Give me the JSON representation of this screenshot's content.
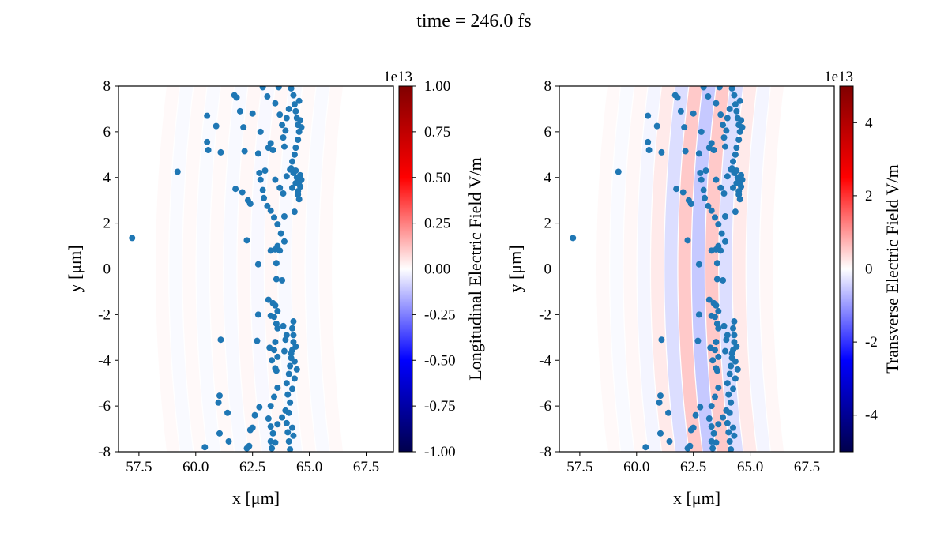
{
  "figure": {
    "title": "time = 246.0 fs"
  },
  "chart_data": [
    {
      "type": "scatter",
      "panel": "left",
      "background": "heatmap",
      "xlabel": "x [μm]",
      "ylabel": "y [μm]",
      "xlim": [
        56.6,
        68.7
      ],
      "ylim": [
        -8,
        8
      ],
      "xticks": [
        "57.5",
        "60.0",
        "62.5",
        "65.0",
        "67.5"
      ],
      "yticks": [
        "-8",
        "-6",
        "-4",
        "-2",
        "0",
        "2",
        "4",
        "6",
        "8"
      ],
      "colorbar": {
        "label": "Longitudinal Electric Field V/m",
        "offset": "1e13",
        "range": [
          -1.0,
          1.0
        ],
        "ticks": [
          "-1.00",
          "-0.75",
          "-0.50",
          "-0.25",
          "0.00",
          "0.25",
          "0.50",
          "0.75",
          "1.00"
        ],
        "colormap": "seismic"
      },
      "field_amplitude": 0.03,
      "marker_color": "#1f77b4"
    },
    {
      "type": "scatter",
      "panel": "right",
      "background": "heatmap",
      "xlabel": "x [μm]",
      "ylabel": "y [μm]",
      "xlim": [
        56.6,
        68.7
      ],
      "ylim": [
        -8,
        8
      ],
      "xticks": [
        "57.5",
        "60.0",
        "62.5",
        "65.0",
        "67.5"
      ],
      "yticks": [
        "-8",
        "-6",
        "-4",
        "-2",
        "0",
        "2",
        "4",
        "6",
        "8"
      ],
      "colorbar": {
        "label": "Transverse Electric Field V/m",
        "offset": "1e13",
        "range": [
          -5,
          5
        ],
        "ticks": [
          "-4",
          "-2",
          "0",
          "2",
          "4"
        ],
        "colormap": "seismic"
      },
      "field_amplitude": 0.8,
      "marker_color": "#1f77b4"
    }
  ],
  "particles": [
    [
      57.2,
      1.35
    ],
    [
      59.2,
      4.25
    ],
    [
      60.5,
      6.7
    ],
    [
      60.5,
      5.55
    ],
    [
      60.55,
      5.2
    ],
    [
      60.9,
      6.25
    ],
    [
      61.1,
      5.1
    ],
    [
      61.7,
      7.6
    ],
    [
      61.8,
      7.5
    ],
    [
      61.95,
      6.9
    ],
    [
      62.1,
      6.2
    ],
    [
      62.15,
      5.15
    ],
    [
      62.5,
      6.8
    ],
    [
      62.75,
      5.05
    ],
    [
      62.85,
      6.0
    ],
    [
      62.95,
      7.95
    ],
    [
      63.15,
      7.55
    ],
    [
      63.2,
      5.3
    ],
    [
      63.3,
      5.5
    ],
    [
      63.4,
      5.2
    ],
    [
      63.5,
      7.25
    ],
    [
      63.65,
      7.95
    ],
    [
      63.7,
      6.75
    ],
    [
      63.8,
      6.3
    ],
    [
      63.85,
      5.75
    ],
    [
      63.9,
      5.35
    ],
    [
      63.95,
      6.05
    ],
    [
      64.0,
      6.6
    ],
    [
      64.1,
      7.0
    ],
    [
      64.2,
      7.9
    ],
    [
      64.3,
      7.6
    ],
    [
      64.35,
      7.2
    ],
    [
      64.4,
      6.9
    ],
    [
      64.45,
      6.6
    ],
    [
      64.5,
      6.3
    ],
    [
      64.55,
      6.0
    ],
    [
      64.5,
      5.65
    ],
    [
      64.4,
      5.3
    ],
    [
      64.35,
      5.0
    ],
    [
      64.25,
      4.7
    ],
    [
      64.2,
      4.4
    ],
    [
      64.3,
      4.2
    ],
    [
      64.45,
      4.0
    ],
    [
      64.55,
      3.8
    ],
    [
      64.6,
      3.6
    ],
    [
      64.5,
      3.4
    ],
    [
      64.6,
      4.1
    ],
    [
      64.4,
      4.3
    ],
    [
      64.65,
      3.9
    ],
    [
      61.75,
      3.5
    ],
    [
      62.05,
      3.35
    ],
    [
      62.3,
      3.0
    ],
    [
      62.4,
      2.85
    ],
    [
      62.25,
      1.25
    ],
    [
      62.8,
      4.2
    ],
    [
      62.85,
      3.9
    ],
    [
      62.95,
      3.45
    ],
    [
      63.0,
      3.1
    ],
    [
      63.15,
      2.75
    ],
    [
      63.3,
      2.55
    ],
    [
      63.45,
      2.25
    ],
    [
      63.6,
      1.95
    ],
    [
      63.75,
      1.55
    ],
    [
      63.9,
      1.2
    ],
    [
      63.6,
      1.0
    ],
    [
      63.3,
      0.8
    ],
    [
      63.5,
      0.85
    ],
    [
      63.7,
      0.8
    ],
    [
      63.05,
      4.3
    ],
    [
      63.5,
      3.9
    ],
    [
      63.7,
      3.55
    ],
    [
      63.85,
      3.3
    ],
    [
      63.9,
      2.3
    ],
    [
      63.55,
      0.25
    ],
    [
      62.75,
      0.2
    ],
    [
      63.55,
      -0.45
    ],
    [
      63.8,
      -0.5
    ],
    [
      63.2,
      -1.35
    ],
    [
      63.4,
      -1.5
    ],
    [
      63.5,
      -1.6
    ],
    [
      63.6,
      -1.85
    ],
    [
      63.45,
      -2.1
    ],
    [
      63.3,
      -2.05
    ],
    [
      63.55,
      -2.4
    ],
    [
      63.6,
      -2.6
    ],
    [
      63.5,
      -3.2
    ],
    [
      63.25,
      -3.45
    ],
    [
      63.45,
      -3.55
    ],
    [
      63.6,
      -3.85
    ],
    [
      63.35,
      -4.0
    ],
    [
      63.5,
      -4.35
    ],
    [
      63.55,
      -4.45
    ],
    [
      63.6,
      -5.2
    ],
    [
      63.45,
      -5.6
    ],
    [
      63.3,
      -6.0
    ],
    [
      63.2,
      -6.55
    ],
    [
      63.3,
      -6.9
    ],
    [
      63.4,
      -7.2
    ],
    [
      63.3,
      -7.55
    ],
    [
      63.35,
      -7.85
    ],
    [
      63.5,
      -7.6
    ],
    [
      63.6,
      -6.8
    ],
    [
      63.8,
      -6.5
    ],
    [
      63.95,
      -6.2
    ],
    [
      64.05,
      -5.5
    ],
    [
      64.0,
      -5.0
    ],
    [
      64.1,
      -4.6
    ],
    [
      64.15,
      -4.25
    ],
    [
      64.2,
      -3.9
    ],
    [
      64.25,
      -3.55
    ],
    [
      64.3,
      -3.2
    ],
    [
      64.3,
      -2.9
    ],
    [
      64.25,
      -2.6
    ],
    [
      64.3,
      -2.3
    ],
    [
      64.4,
      -3.4
    ],
    [
      64.35,
      -4.8
    ],
    [
      64.25,
      -5.25
    ],
    [
      64.15,
      -5.85
    ],
    [
      64.1,
      -6.3
    ],
    [
      64.0,
      -6.75
    ],
    [
      64.05,
      -7.15
    ],
    [
      64.1,
      -7.55
    ],
    [
      64.15,
      -7.9
    ],
    [
      64.3,
      -7.3
    ],
    [
      64.25,
      -6.95
    ],
    [
      64.2,
      -3.7
    ],
    [
      64.35,
      -4.05
    ],
    [
      64.45,
      -4.4
    ],
    [
      63.95,
      -3.1
    ],
    [
      63.85,
      -2.5
    ],
    [
      64.0,
      -2.9
    ],
    [
      63.9,
      -3.6
    ],
    [
      62.75,
      -2.0
    ],
    [
      62.7,
      -3.15
    ],
    [
      61.1,
      -3.1
    ],
    [
      62.8,
      -6.05
    ],
    [
      62.6,
      -6.4
    ],
    [
      62.4,
      -7.05
    ],
    [
      62.35,
      -7.75
    ],
    [
      62.25,
      -7.85
    ],
    [
      62.5,
      -6.95
    ],
    [
      61.05,
      -5.55
    ],
    [
      61.0,
      -5.85
    ],
    [
      61.4,
      -6.3
    ],
    [
      61.05,
      -7.2
    ],
    [
      61.45,
      -7.55
    ],
    [
      60.4,
      -7.8
    ],
    [
      64.55,
      7.35
    ],
    [
      64.6,
      6.5
    ],
    [
      64.65,
      6.2
    ],
    [
      64.0,
      4.05
    ],
    [
      64.15,
      4.35
    ],
    [
      64.25,
      3.55
    ],
    [
      64.4,
      3.75
    ],
    [
      64.5,
      3.25
    ],
    [
      64.55,
      3.05
    ],
    [
      64.35,
      2.5
    ]
  ]
}
